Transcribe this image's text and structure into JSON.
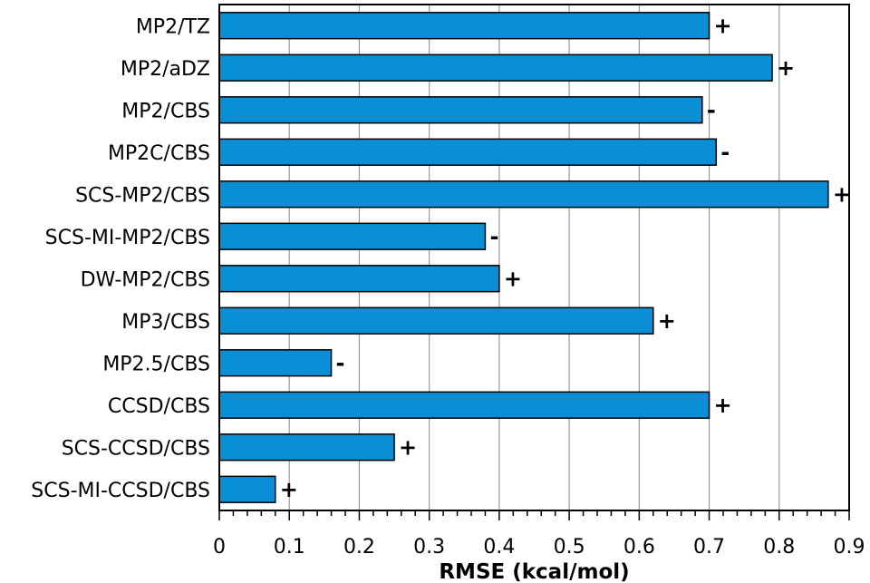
{
  "chart_data": {
    "type": "bar",
    "orientation": "horizontal",
    "categories": [
      "MP2/TZ",
      "MP2/aDZ",
      "MP2/CBS",
      "MP2C/CBS",
      "SCS-MP2/CBS",
      "SCS-MI-MP2/CBS",
      "DW-MP2/CBS",
      "MP3/CBS",
      "MP2.5/CBS",
      "CCSD/CBS",
      "SCS-CCSD/CBS",
      "SCS-MI-CCSD/CBS"
    ],
    "values": [
      0.7,
      0.79,
      0.69,
      0.71,
      0.87,
      0.38,
      0.4,
      0.62,
      0.16,
      0.7,
      0.25,
      0.08
    ],
    "signs": [
      "+",
      "+",
      "-",
      "-",
      "+",
      "-",
      "+",
      "+",
      "-",
      "+",
      "+",
      "+"
    ],
    "xlabel": "RMSE (kcal/mol)",
    "xlim": [
      0,
      0.9
    ],
    "xticks": [
      "0",
      "0.1",
      "0.2",
      "0.3",
      "0.4",
      "0.5",
      "0.6",
      "0.7",
      "0.8",
      "0.9"
    ],
    "grid": "vertical",
    "colors": {
      "bar": "#0a8fd6",
      "edge": "#000000",
      "grid": "#999999"
    }
  }
}
